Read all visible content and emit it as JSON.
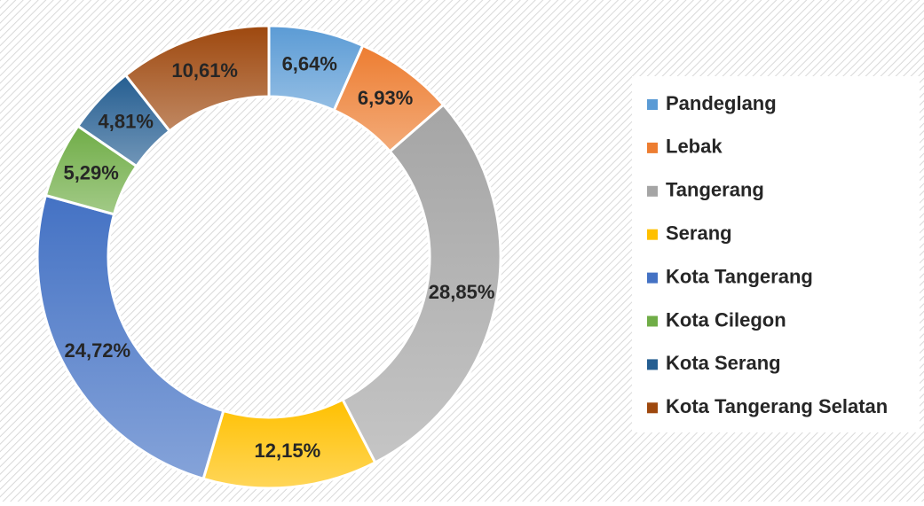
{
  "chart_data": {
    "type": "doughnut",
    "categories": [
      "Pandeglang",
      "Lebak",
      "Tangerang",
      "Serang",
      "Kota Tangerang",
      "Kota Cilegon",
      "Kota Serang",
      "Kota Tangerang Selatan"
    ],
    "values": [
      6.64,
      6.93,
      28.85,
      12.15,
      24.72,
      5.29,
      4.81,
      10.61
    ],
    "value_labels": [
      "6,64%",
      "6,93%",
      "28,85%",
      "12,15%",
      "24,72%",
      "5,29%",
      "4,81%",
      "10,61%"
    ],
    "colors": [
      "#5b9bd5",
      "#ed7d31",
      "#a5a5a5",
      "#ffc000",
      "#4472c4",
      "#70ad47",
      "#255e91",
      "#9e480e"
    ],
    "legend": "right"
  }
}
